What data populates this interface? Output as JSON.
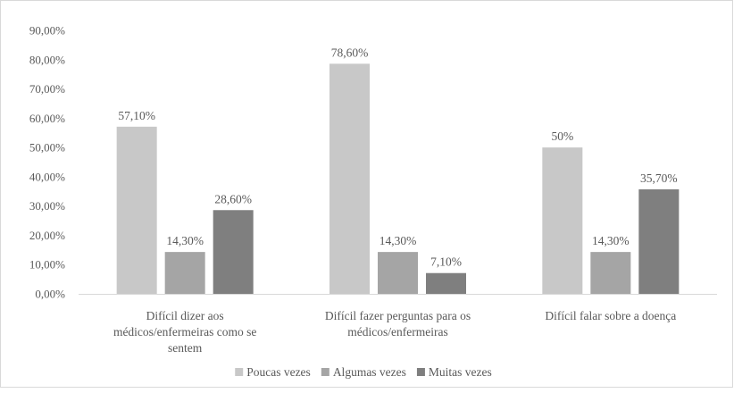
{
  "chart_data": {
    "type": "bar",
    "categories": [
      [
        "Difícil dizer aos",
        "médicos/enfermeiras como se",
        "sentem"
      ],
      [
        "Difícil fazer perguntas para os",
        "médicos/enfermeiras"
      ],
      [
        "Difícil falar sobre a doença"
      ]
    ],
    "series": [
      {
        "name": "Poucas vezes",
        "color": "#c8c8c8",
        "values": [
          57.1,
          78.6,
          50.0
        ],
        "labels": [
          "57,10%",
          "78,60%",
          "50%"
        ]
      },
      {
        "name": "Algumas vezes",
        "color": "#a5a5a5",
        "values": [
          14.3,
          14.3,
          14.3
        ],
        "labels": [
          "14,30%",
          "14,30%",
          "14,30%"
        ]
      },
      {
        "name": "Muitas vezes",
        "color": "#7f7f7f",
        "values": [
          28.6,
          7.1,
          35.7
        ],
        "labels": [
          "28,60%",
          "7,10%",
          "35,70%"
        ]
      }
    ],
    "y_ticks": [
      "0,00%",
      "10,00%",
      "20,00%",
      "30,00%",
      "40,00%",
      "50,00%",
      "60,00%",
      "70,00%",
      "80,00%",
      "90,00%"
    ],
    "ylim": [
      0,
      90
    ],
    "grid": false,
    "legend_position": "bottom"
  }
}
